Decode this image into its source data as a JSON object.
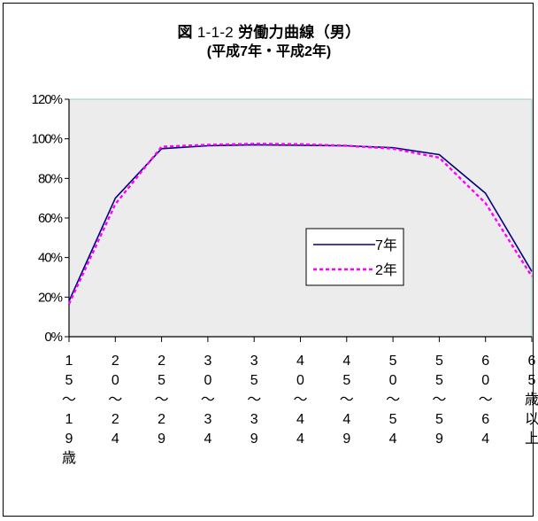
{
  "title": {
    "prefix": "図",
    "number": "1-1-2",
    "text": "労働力曲線（男）"
  },
  "subtitle": "(平成7年・平成2年)",
  "colors": {
    "plot_bg": "#ececec",
    "series_7": "#000080",
    "series_2": "#ff00ff",
    "plot_border": "#99cccc"
  },
  "chart_data": {
    "type": "line",
    "categories": [
      "15〜19歳",
      "20〜24",
      "25〜29",
      "30〜34",
      "35〜39",
      "40〜44",
      "45〜49",
      "50〜54",
      "55〜59",
      "60〜64",
      "65歳以上"
    ],
    "category_labels": [
      [
        "1",
        "5",
        "〜",
        "1",
        "9",
        "歳"
      ],
      [
        "2",
        "0",
        "〜",
        "2",
        "4"
      ],
      [
        "2",
        "5",
        "〜",
        "2",
        "9"
      ],
      [
        "3",
        "0",
        "〜",
        "3",
        "4"
      ],
      [
        "3",
        "5",
        "〜",
        "3",
        "9"
      ],
      [
        "4",
        "0",
        "〜",
        "4",
        "4"
      ],
      [
        "4",
        "5",
        "〜",
        "4",
        "9"
      ],
      [
        "5",
        "0",
        "〜",
        "5",
        "4"
      ],
      [
        "5",
        "5",
        "〜",
        "5",
        "9"
      ],
      [
        "6",
        "0",
        "〜",
        "6",
        "4"
      ],
      [
        "6",
        "5",
        "歳",
        "以",
        "上"
      ]
    ],
    "series": [
      {
        "name": "7年",
        "values": [
          18,
          70,
          95,
          96.5,
          97,
          96.7,
          96.5,
          95.5,
          92,
          72.5,
          33
        ],
        "color": "#000080",
        "style": "solid"
      },
      {
        "name": "2年",
        "values": [
          16.5,
          67,
          96,
          97,
          97.5,
          97.3,
          96.5,
          95,
          90.5,
          67.5,
          30.5
        ],
        "color": "#ff00ff",
        "style": "dashed"
      }
    ],
    "yticks": [
      "0%",
      "20%",
      "40%",
      "60%",
      "80%",
      "100%",
      "120%"
    ],
    "ylim": [
      0,
      120
    ],
    "grid": false,
    "legend": "center-right"
  }
}
